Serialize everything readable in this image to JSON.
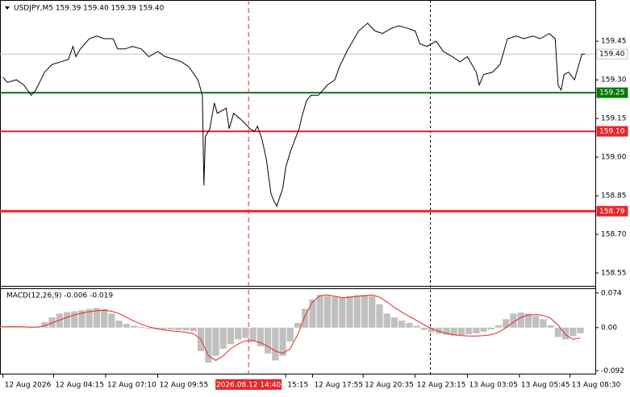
{
  "chart_data": [
    {
      "type": "line",
      "title": "USDJPY,M5  159.39 159.40 159.39 159.40",
      "color": "#000000",
      "x": [
        2,
        5,
        11,
        16,
        21,
        24,
        30,
        35,
        41,
        46,
        49,
        51,
        54,
        60,
        65,
        70,
        76,
        79,
        84,
        89,
        95,
        100,
        106,
        111,
        117,
        122,
        127,
        133,
        136,
        137,
        138,
        141,
        144,
        146,
        152,
        154,
        157,
        163,
        168,
        171,
        173,
        176,
        179,
        182,
        184,
        186,
        190,
        192,
        195,
        201,
        203,
        206,
        209,
        214,
        220,
        225,
        228,
        233,
        238,
        241,
        247,
        252,
        257,
        263,
        268,
        274,
        279,
        282,
        287,
        293,
        298,
        304,
        309,
        314,
        320,
        322,
        325,
        331,
        336,
        341,
        347,
        352,
        358,
        363,
        369,
        373,
        375,
        377,
        379,
        382,
        386,
        389,
        391,
        393
      ],
      "values": [
        159.31,
        159.29,
        159.3,
        159.28,
        159.24,
        159.26,
        159.33,
        159.36,
        159.37,
        159.38,
        159.43,
        159.39,
        159.42,
        159.46,
        159.47,
        159.46,
        159.46,
        159.42,
        159.42,
        159.43,
        159.42,
        159.39,
        159.41,
        159.39,
        159.38,
        159.37,
        159.35,
        159.3,
        159.24,
        158.89,
        159.08,
        159.11,
        159.21,
        159.17,
        159.19,
        159.11,
        159.17,
        159.14,
        159.11,
        159.1,
        159.12,
        159.07,
        158.99,
        158.86,
        158.83,
        158.81,
        158.88,
        158.96,
        159.02,
        159.11,
        159.16,
        159.22,
        159.24,
        159.24,
        159.28,
        159.3,
        159.35,
        159.41,
        159.46,
        159.49,
        159.52,
        159.49,
        159.48,
        159.5,
        159.51,
        159.5,
        159.49,
        159.44,
        159.43,
        159.45,
        159.41,
        159.39,
        159.37,
        159.39,
        159.33,
        159.28,
        159.32,
        159.33,
        159.36,
        159.46,
        159.47,
        159.46,
        159.47,
        159.46,
        159.48,
        159.46,
        159.28,
        159.26,
        159.32,
        159.33,
        159.3,
        159.36,
        159.4,
        159.4
      ],
      "xlim": [
        0,
        400
      ],
      "ylim": [
        158.5,
        159.61
      ],
      "yticks": [
        159.45,
        {
          "value": 159.3,
          "label": "159.30"
        },
        159.15,
        {
          "value": 159,
          "label": "159.00"
        },
        158.85,
        {
          "value": 158.7,
          "label": "158.70"
        },
        158.55
      ],
      "xticks": [
        {
          "value": 2,
          "label": "12 Aug 2026"
        },
        {
          "value": 36,
          "label": "12 Aug 04:15"
        },
        {
          "value": 71,
          "label": "12 Aug 07:10"
        },
        {
          "value": 106,
          "label": "12 Aug 09:55"
        },
        {
          "value": 192,
          "label": "15:15"
        },
        {
          "value": 210,
          "label": "12 Aug 17:55"
        },
        {
          "value": 244,
          "label": "12 Aug 20:35"
        },
        {
          "value": 279,
          "label": "12 Aug 23:15"
        },
        {
          "value": 314,
          "label": "13 Aug 03:05"
        },
        {
          "value": 349,
          "label": "13 Aug 05:45"
        },
        {
          "value": 383,
          "label": "13 Aug 08:30"
        }
      ],
      "crosshair": {
        "value": 167,
        "label": "2026.08.12 14:40",
        "color": "#e8262b"
      },
      "levels": [
        {
          "value": 159.4,
          "label": "159.40",
          "color": "#c0c0c0",
          "box_color": "#ffffff",
          "text_color": "#000000"
        },
        {
          "value": 159.25,
          "label": "159.25",
          "color": "#0a7a0a",
          "box_color": "#0a7a0a",
          "text_color": "#ffffff"
        },
        {
          "value": 159.1,
          "label": "159.10",
          "color": "#e8262b",
          "box_color": "#e8262b",
          "text_color": "#ffffff"
        },
        {
          "value": 158.79,
          "label": "158.79",
          "color": "#e8262b",
          "box_color": "#e8262b",
          "text_color": "#ffffff"
        }
      ]
    },
    {
      "type": "macd",
      "title": "MACD(12,26,9) -0.006 -0.019",
      "x": [
        0,
        5,
        10,
        15,
        20,
        25,
        30,
        35,
        40,
        45,
        50,
        55,
        60,
        65,
        70,
        75,
        80,
        85,
        90,
        95,
        100,
        105,
        110,
        115,
        120,
        125,
        130,
        135,
        140,
        145,
        150,
        155,
        160,
        165,
        170,
        175,
        180,
        185,
        190,
        195,
        200,
        205,
        210,
        215,
        220,
        225,
        230,
        235,
        240,
        245,
        250,
        255,
        260,
        265,
        270,
        275,
        280,
        285,
        290,
        295,
        300,
        305,
        310,
        315,
        320,
        325,
        330,
        335,
        340,
        345,
        350,
        355,
        360,
        365,
        370,
        375,
        380,
        385,
        390
      ],
      "histogram": {
        "color": "#c0c0c0",
        "values": [
          0.002,
          0.002,
          0.003,
          0.002,
          0,
          0.002,
          0.012,
          0.022,
          0.03,
          0.033,
          0.035,
          0.037,
          0.04,
          0.042,
          0.04,
          0.03,
          0.015,
          0.008,
          0.004,
          0.002,
          -0.002,
          -0.003,
          -0.004,
          -0.004,
          -0.005,
          -0.006,
          -0.008,
          -0.05,
          -0.075,
          -0.06,
          -0.045,
          -0.035,
          -0.025,
          -0.022,
          -0.03,
          -0.04,
          -0.055,
          -0.07,
          -0.06,
          -0.03,
          0.01,
          0.04,
          0.06,
          0.07,
          0.068,
          0.066,
          0.065,
          0.067,
          0.069,
          0.07,
          0.068,
          0.05,
          0.03,
          0.022,
          0.015,
          0.01,
          0.004,
          -0.005,
          -0.01,
          -0.013,
          -0.016,
          -0.017,
          -0.016,
          -0.014,
          -0.012,
          -0.009,
          -0.004,
          0.005,
          0.018,
          0.03,
          0.032,
          0.03,
          0.025,
          0.018,
          0.005,
          -0.02,
          -0.025,
          -0.018,
          -0.012
        ]
      },
      "signal": {
        "color": "#e8262b",
        "values": [
          0.002,
          0.002,
          0.002,
          0.002,
          0.001,
          0.001,
          0.004,
          0.01,
          0.016,
          0.022,
          0.027,
          0.031,
          0.034,
          0.036,
          0.037,
          0.035,
          0.03,
          0.022,
          0.014,
          0.007,
          0.002,
          -0.002,
          -0.005,
          -0.007,
          -0.008,
          -0.01,
          -0.013,
          -0.025,
          -0.06,
          -0.07,
          -0.06,
          -0.045,
          -0.035,
          -0.028,
          -0.028,
          -0.032,
          -0.04,
          -0.05,
          -0.055,
          -0.045,
          -0.015,
          0.025,
          0.055,
          0.068,
          0.07,
          0.067,
          0.064,
          0.065,
          0.067,
          0.068,
          0.07,
          0.065,
          0.055,
          0.043,
          0.033,
          0.024,
          0.015,
          0.006,
          -0.002,
          -0.008,
          -0.012,
          -0.015,
          -0.017,
          -0.018,
          -0.018,
          -0.017,
          -0.015,
          -0.01,
          0,
          0.012,
          0.022,
          0.027,
          0.028,
          0.026,
          0.02,
          0.005,
          -0.015,
          -0.025,
          -0.022
        ]
      },
      "ylim": [
        -0.1,
        0.084
      ],
      "yticks": [
        0.074,
        {
          "value": 0,
          "label": "0.00"
        },
        -0.092
      ]
    }
  ]
}
